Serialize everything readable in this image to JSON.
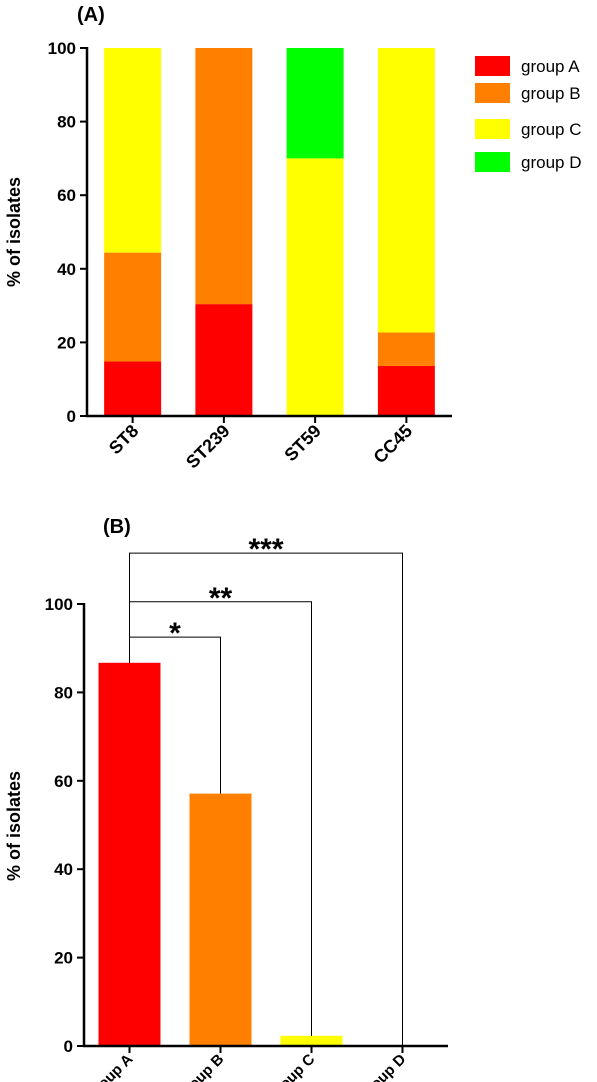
{
  "chart_data": [
    {
      "panel_label": "(A)",
      "type": "bar",
      "stacked": true,
      "categories": [
        "ST8",
        "ST239",
        "ST59",
        "CC45"
      ],
      "series": [
        {
          "name": "group A",
          "color": "#ff0000",
          "values": [
            14.8,
            30.4,
            0,
            13.6
          ]
        },
        {
          "name": "group B",
          "color": "#ff8000",
          "values": [
            29.6,
            69.6,
            0,
            9.1
          ]
        },
        {
          "name": "group C",
          "color": "#ffff00",
          "values": [
            55.6,
            0,
            70,
            77.3
          ]
        },
        {
          "name": "group D",
          "color": "#00ff00",
          "values": [
            0,
            0,
            30,
            0
          ]
        }
      ],
      "ylabel": "% of isolates",
      "ylim": [
        0,
        100
      ],
      "yticks": [
        0,
        20,
        40,
        60,
        80,
        100
      ],
      "legend": "right"
    },
    {
      "panel_label": "(B)",
      "type": "bar",
      "categories": [
        "group A",
        "group B",
        "group C",
        "group D"
      ],
      "values": [
        86.7,
        57.1,
        2.3,
        0
      ],
      "colors": [
        "#ff0000",
        "#ff8000",
        "#ffff00",
        "#00ff00"
      ],
      "ylabel": "% of isolates",
      "ylim": [
        0,
        100
      ],
      "yticks": [
        0,
        20,
        40,
        60,
        80,
        100
      ],
      "significance": [
        {
          "from": "group A",
          "to": "group B",
          "label": "*",
          "level": 92.5
        },
        {
          "from": "group A",
          "to": "group C",
          "label": "**",
          "level": 100.5
        },
        {
          "from": "group A",
          "to": "group D",
          "label": "***",
          "level": 111.5
        }
      ]
    }
  ]
}
